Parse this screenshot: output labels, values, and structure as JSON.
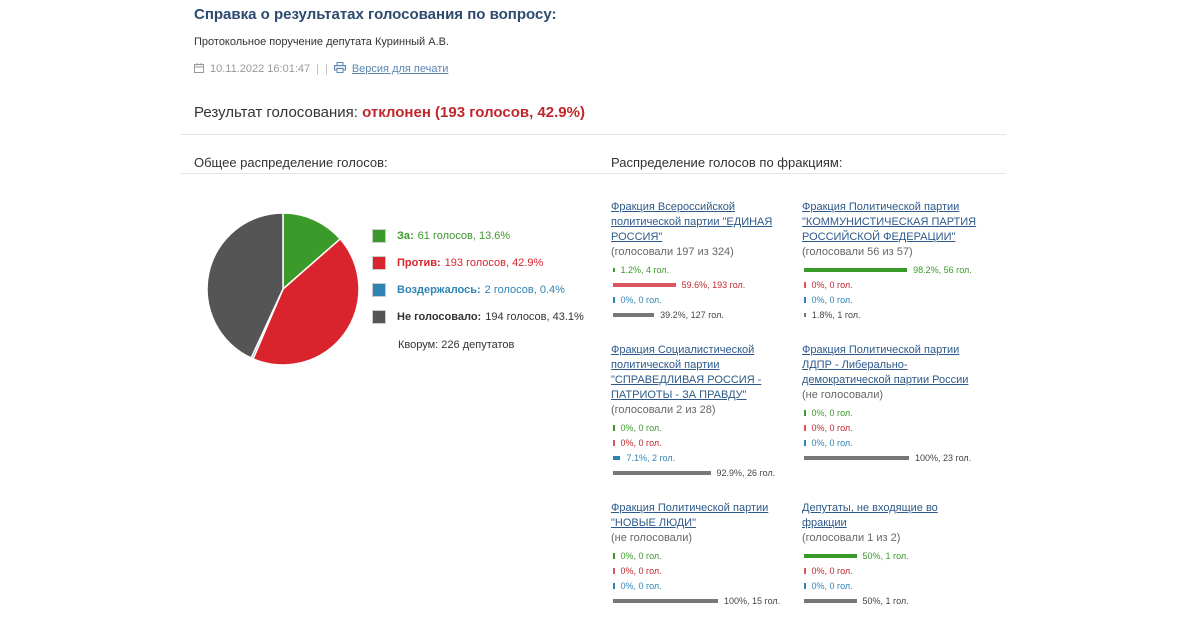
{
  "header": {
    "title": "Справка о результатах голосования по вопросу:",
    "subtitle": "Протокольное поручение депутата Куринный А.В.",
    "datetime": "10.11.2022 16:01:47",
    "separator": "|",
    "print_link": "Версия для печати"
  },
  "result": {
    "label": "Результат голосования:",
    "value": "отклонен (193 голосов, 42.9%)"
  },
  "sections": {
    "overall": "Общее распределение голосов:",
    "factions": "Распределение голосов по фракциям:"
  },
  "colors": {
    "for": "#3a9a2a",
    "against": "#d9232d",
    "abstain": "#2f84b4",
    "notvoted": "#555555"
  },
  "chart_data": {
    "type": "pie",
    "slices": [
      {
        "label": "За:",
        "value": 61,
        "text": "61 голосов, 13.6%",
        "percent": 13.6,
        "color": "#3a9a2a"
      },
      {
        "label": "Против:",
        "value": 193,
        "text": "193 голосов, 42.9%",
        "percent": 42.9,
        "color": "#d9232d"
      },
      {
        "label": "Воздержалось:",
        "value": 2,
        "text": "2 голосов, 0.4%",
        "percent": 0.4,
        "color": "#2f84b4"
      },
      {
        "label": "Не голосовало:",
        "value": 194,
        "text": "194 голосов, 43.1%",
        "percent": 43.1,
        "color": "#555555"
      }
    ]
  },
  "quorum": "Кворум: 226 депутатов",
  "factions": [
    {
      "name": "Фракция Всероссийской политической партии \"ЕДИНАЯ РОССИЯ\"",
      "sub": "(голосовали 197 из 324)",
      "rows": [
        {
          "pct": 1.2,
          "text": "1.2%, 4 гол.",
          "cls": "g"
        },
        {
          "pct": 59.6,
          "text": "59.6%, 193 гол.",
          "cls": "r"
        },
        {
          "pct": 0,
          "text": "0%, 0 гол.",
          "cls": "b"
        },
        {
          "pct": 39.2,
          "text": "39.2%, 127 гол.",
          "cls": "k"
        }
      ]
    },
    {
      "name": "Фракция Политической партии \"КОММУНИСТИЧЕСКАЯ ПАРТИЯ РОССИЙСКОЙ ФЕДЕРАЦИИ\"",
      "sub": "(голосовали 56 из 57)",
      "rows": [
        {
          "pct": 98.2,
          "text": "98.2%, 56 гол.",
          "cls": "g"
        },
        {
          "pct": 0,
          "text": "0%, 0 гол.",
          "cls": "r"
        },
        {
          "pct": 0,
          "text": "0%, 0 гол.",
          "cls": "b"
        },
        {
          "pct": 1.8,
          "text": "1.8%, 1 гол.",
          "cls": "k"
        }
      ]
    },
    {
      "name": "Фракция Социалистической политической партии \"СПРАВЕДЛИВАЯ РОССИЯ - ПАТРИОТЫ - ЗА ПРАВДУ\"",
      "sub": "(голосовали 2 из 28)",
      "rows": [
        {
          "pct": 0,
          "text": "0%, 0 гол.",
          "cls": "g"
        },
        {
          "pct": 0,
          "text": "0%, 0 гол.",
          "cls": "r"
        },
        {
          "pct": 7.1,
          "text": "7.1%, 2 гол.",
          "cls": "b"
        },
        {
          "pct": 92.9,
          "text": "92.9%, 26 гол.",
          "cls": "k"
        }
      ]
    },
    {
      "name": "Фракция Политической партии ЛДПР - Либерально-демократической партии России",
      "sub": "(не голосовали)",
      "rows": [
        {
          "pct": 0,
          "text": "0%, 0 гол.",
          "cls": "g"
        },
        {
          "pct": 0,
          "text": "0%, 0 гол.",
          "cls": "r"
        },
        {
          "pct": 0,
          "text": "0%, 0 гол.",
          "cls": "b"
        },
        {
          "pct": 100,
          "text": "100%, 23 гол.",
          "cls": "k"
        }
      ]
    },
    {
      "name": "Фракция Политической партии \"НОВЫЕ ЛЮДИ\"",
      "sub": "(не голосовали)",
      "rows": [
        {
          "pct": 0,
          "text": "0%, 0 гол.",
          "cls": "g"
        },
        {
          "pct": 0,
          "text": "0%, 0 гол.",
          "cls": "r"
        },
        {
          "pct": 0,
          "text": "0%, 0 гол.",
          "cls": "b"
        },
        {
          "pct": 100,
          "text": "100%, 15 гол.",
          "cls": "k"
        }
      ]
    },
    {
      "name": "Депутаты, не входящие во фракции",
      "sub": "(голосовали 1 из 2)",
      "rows": [
        {
          "pct": 50,
          "text": "50%, 1 гол.",
          "cls": "g"
        },
        {
          "pct": 0,
          "text": "0%, 0 гол.",
          "cls": "r"
        },
        {
          "pct": 0,
          "text": "0%, 0 гол.",
          "cls": "b"
        },
        {
          "pct": 50,
          "text": "50%, 1 гол.",
          "cls": "k"
        }
      ]
    }
  ]
}
